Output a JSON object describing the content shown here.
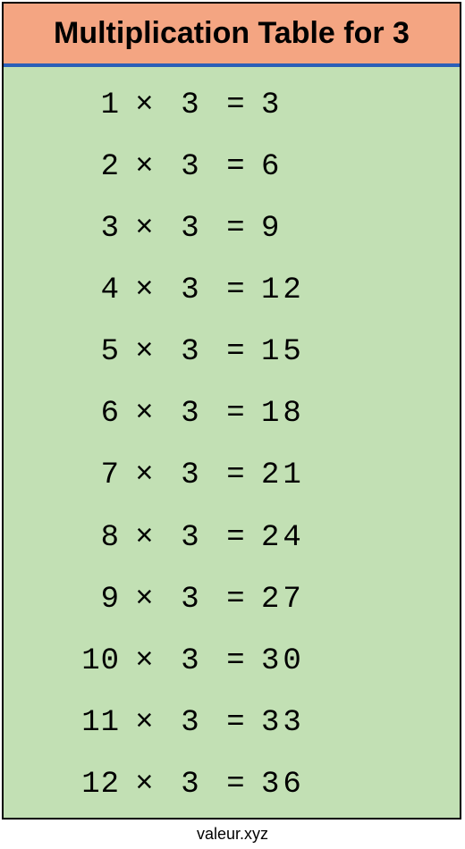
{
  "title": "Multiplication Table for 3",
  "footer": "valeur.xyz",
  "colors": {
    "header_bg": "#f4a582",
    "header_underline": "#2b5fb8",
    "body_bg": "#c2e0b4",
    "border": "#000000",
    "text": "#000000"
  },
  "typography": {
    "title_fontsize": 34,
    "title_fontweight": "bold",
    "row_fontsize": 34,
    "row_fontfamily": "Courier New, monospace",
    "footer_fontsize": 18
  },
  "op": "×",
  "eq": "=",
  "rows": [
    {
      "a": "1",
      "b": "3",
      "r": "3"
    },
    {
      "a": "2",
      "b": "3",
      "r": "6"
    },
    {
      "a": "3",
      "b": "3",
      "r": "9"
    },
    {
      "a": "4",
      "b": "3",
      "r": "12"
    },
    {
      "a": "5",
      "b": "3",
      "r": "15"
    },
    {
      "a": "6",
      "b": "3",
      "r": "18"
    },
    {
      "a": "7",
      "b": "3",
      "r": "21"
    },
    {
      "a": "8",
      "b": "3",
      "r": "24"
    },
    {
      "a": "9",
      "b": "3",
      "r": "27"
    },
    {
      "a": "10",
      "b": "3",
      "r": "30"
    },
    {
      "a": "11",
      "b": "3",
      "r": "33"
    },
    {
      "a": "12",
      "b": "3",
      "r": "36"
    }
  ]
}
